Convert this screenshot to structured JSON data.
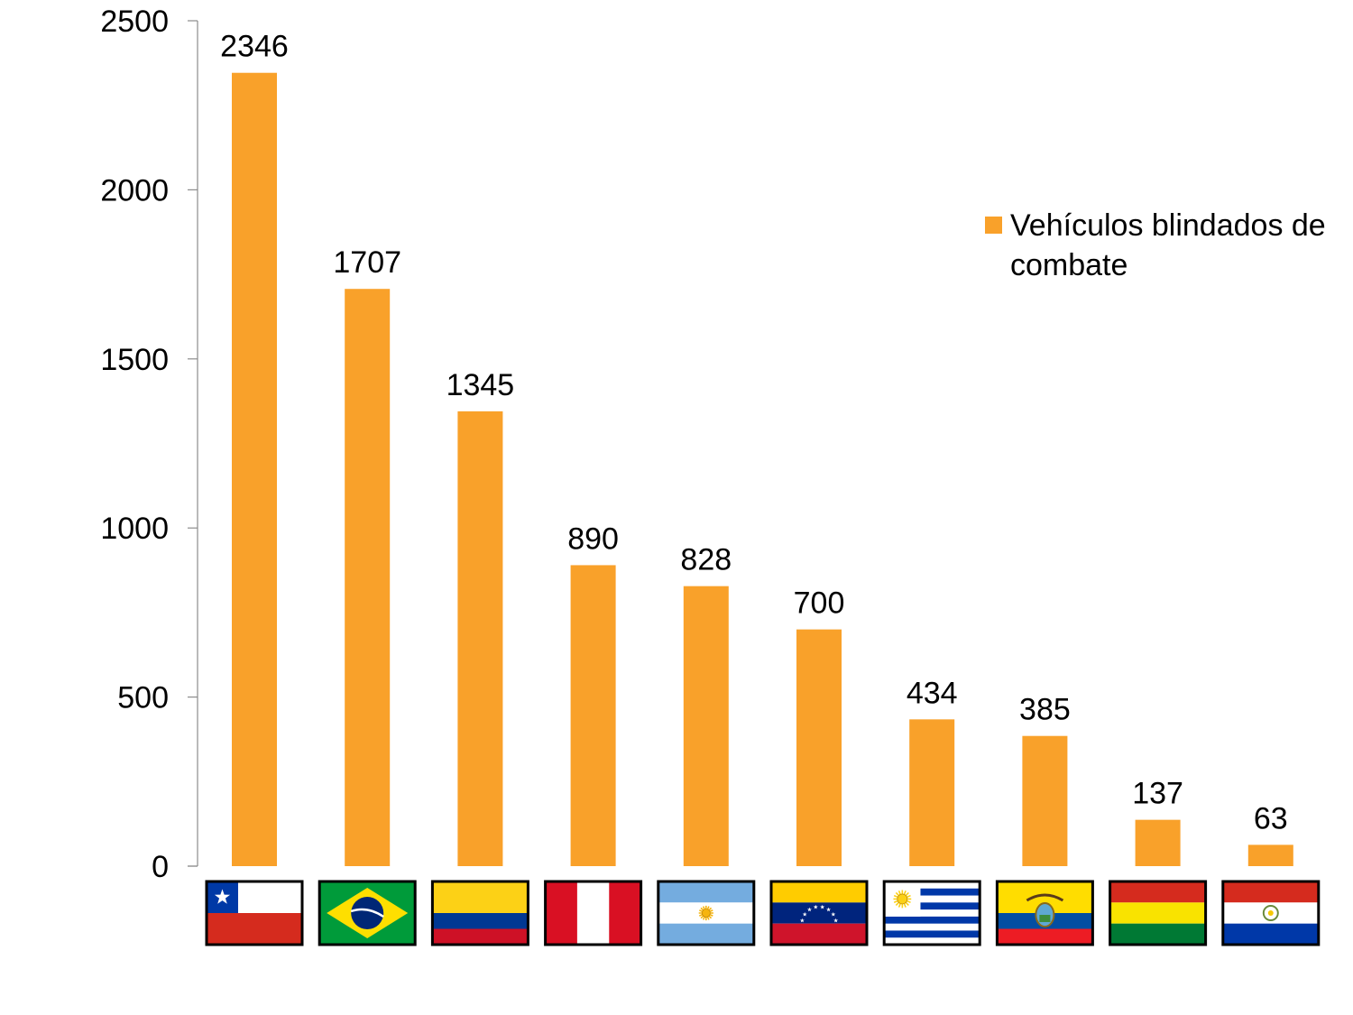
{
  "chart_data": {
    "type": "bar",
    "title": "",
    "xlabel": "",
    "ylabel": "",
    "ylim": [
      0,
      2500
    ],
    "yticks": [
      0,
      500,
      1000,
      1500,
      2000,
      2500
    ],
    "grid": false,
    "legend_position": "right",
    "categories": [
      "Chile",
      "Brasil",
      "Colombia",
      "Perú",
      "Argentina",
      "Venezuela",
      "Uruguay",
      "Ecuador",
      "Bolivia",
      "Paraguay"
    ],
    "category_icons": [
      "chile-flag-icon",
      "brazil-flag-icon",
      "colombia-flag-icon",
      "peru-flag-icon",
      "argentina-flag-icon",
      "venezuela-flag-icon",
      "uruguay-flag-icon",
      "ecuador-flag-icon",
      "bolivia-flag-icon",
      "paraguay-flag-icon"
    ],
    "series": [
      {
        "name": "Vehículos blindados de combate",
        "color": "#F9A12A",
        "values": [
          2346,
          1707,
          1345,
          890,
          828,
          700,
          434,
          385,
          137,
          63
        ]
      }
    ]
  }
}
